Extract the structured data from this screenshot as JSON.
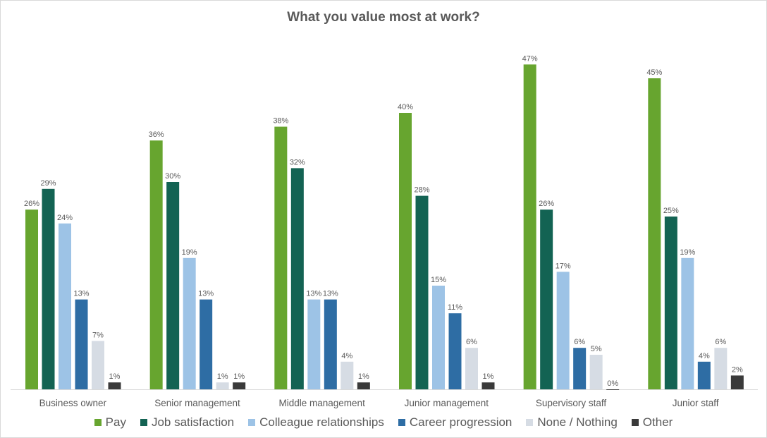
{
  "chart_data": {
    "type": "bar",
    "title": "What you value most at work?",
    "xlabel": "",
    "ylabel": "",
    "ylim": [
      0,
      50
    ],
    "grid": false,
    "legend_position": "bottom",
    "categories": [
      "Business owner",
      "Senior management",
      "Middle management",
      "Junior management",
      "Supervisory staff",
      "Junior staff"
    ],
    "series": [
      {
        "name": "Pay",
        "color": "#67a52f",
        "values": [
          26,
          36,
          38,
          40,
          47,
          45
        ],
        "labels": [
          "26%",
          "36%",
          "38%",
          "40%",
          "47%",
          "45%"
        ]
      },
      {
        "name": "Job satisfaction",
        "color": "#136353",
        "values": [
          29,
          30,
          32,
          28,
          26,
          25
        ],
        "labels": [
          "29%",
          "30%",
          "32%",
          "28%",
          "26%",
          "25%"
        ]
      },
      {
        "name": "Colleague relationships",
        "color": "#9dc3e6",
        "values": [
          24,
          19,
          13,
          15,
          17,
          19
        ],
        "labels": [
          "24%",
          "19%",
          "13%",
          "15%",
          "17%",
          "19%"
        ]
      },
      {
        "name": "Career progression",
        "color": "#2e6da4",
        "values": [
          13,
          13,
          13,
          11,
          6,
          4
        ],
        "labels": [
          "13%",
          "13%",
          "13%",
          "11%",
          "6%",
          "4%"
        ]
      },
      {
        "name": "None / Nothing",
        "color": "#d6dce4",
        "values": [
          7,
          1,
          4,
          6,
          5,
          6
        ],
        "labels": [
          "7%",
          "1%",
          "4%",
          "6%",
          "5%",
          "6%"
        ]
      },
      {
        "name": "Other",
        "color": "#3a3a3a",
        "values": [
          1,
          1,
          1,
          1,
          0,
          2
        ],
        "labels": [
          "1%",
          "1%",
          "1%",
          "1%",
          "0%",
          "2%"
        ]
      }
    ]
  },
  "colors": {
    "axis": "#d9d9d9",
    "text": "#595959"
  }
}
